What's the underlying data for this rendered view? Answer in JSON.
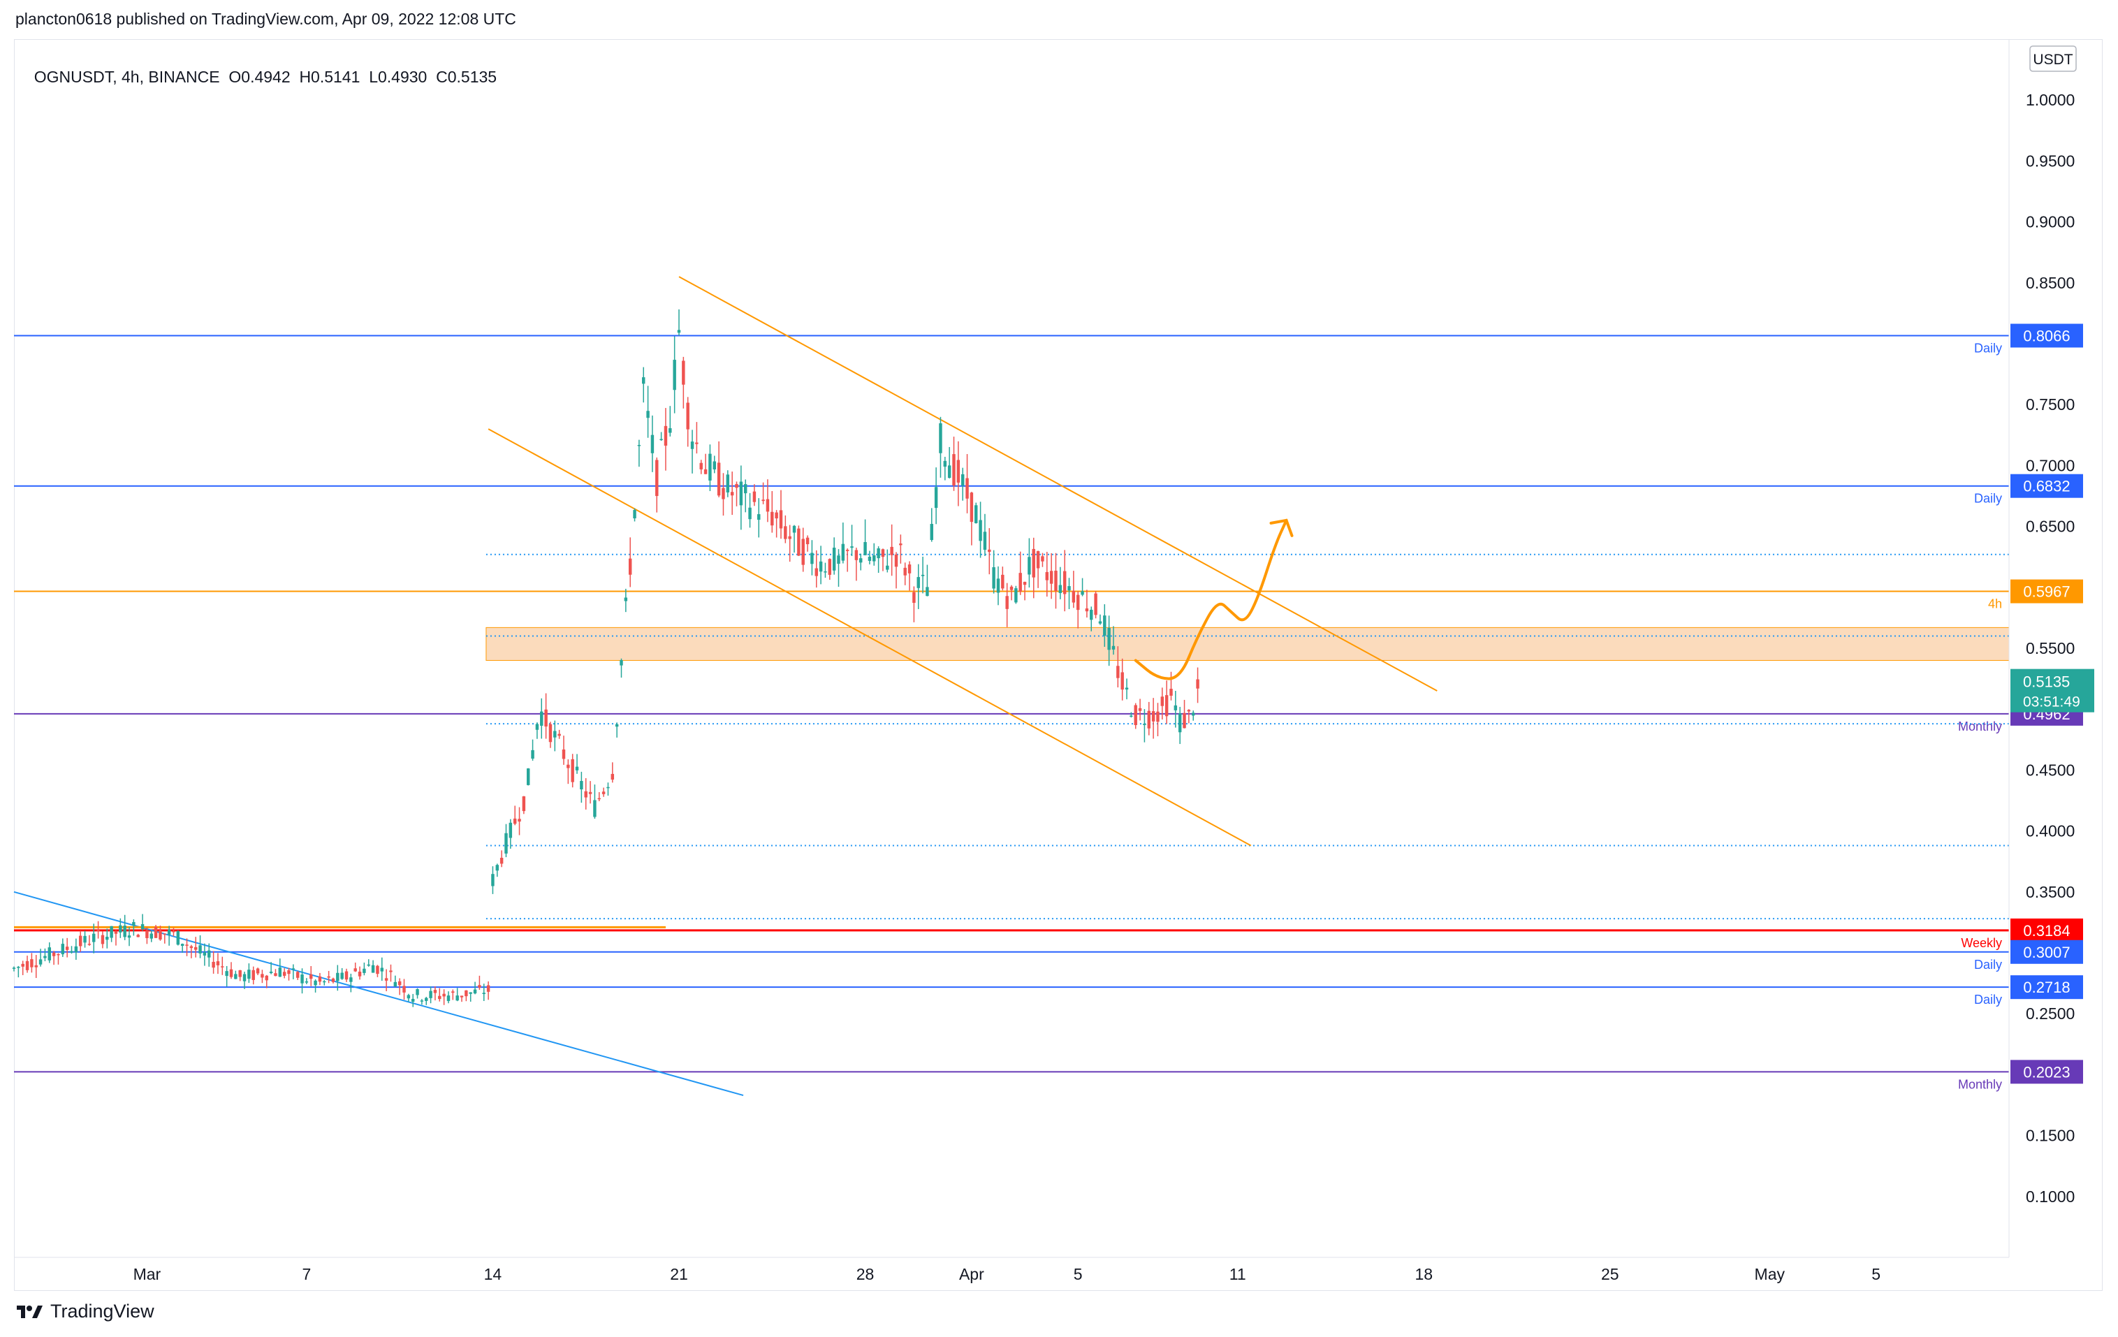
{
  "header": {
    "published": "plancton0618 published on TradingView.com, Apr 09, 2022 12:08 UTC"
  },
  "legend": {
    "symbol": "OGNUSDT, 4h, BINANCE",
    "open": "O0.4942",
    "high": "H0.5141",
    "low": "L0.4930",
    "close": "C0.5135"
  },
  "footer": {
    "brand": "TradingView",
    "icon": "tradingview-logo-icon"
  },
  "colors": {
    "up": "#26a69a",
    "down": "#ef5350",
    "orange": "#ff9800",
    "blue": "#2962ff",
    "purple": "#673ab7",
    "red": "#ff0000",
    "zone": "#f9cfa5",
    "lightblue": "#2196f3"
  },
  "chart_data": {
    "type": "candlestick",
    "title": "OGNUSDT, 4h, BINANCE",
    "currency": "USDT",
    "ylim": [
      0.05,
      1.05
    ],
    "y_ticks": [
      "1.0000",
      "0.9500",
      "0.9000",
      "0.8500",
      "0.7500",
      "0.7000",
      "0.6500",
      "0.5500",
      "0.4500",
      "0.4000",
      "0.3500",
      "0.2500",
      "0.1500",
      "0.1000"
    ],
    "x_ticks": [
      "Mar",
      "7",
      "14",
      "21",
      "28",
      "Apr",
      "5",
      "11",
      "18",
      "25",
      "May",
      "5"
    ],
    "x_range": [
      "2022-02-24",
      "2022-05-10"
    ],
    "x_tick_dates": [
      "2022-03-01",
      "2022-03-07",
      "2022-03-14",
      "2022-03-21",
      "2022-03-28",
      "2022-04-01",
      "2022-04-05",
      "2022-04-11",
      "2022-04-18",
      "2022-04-25",
      "2022-05-01",
      "2022-05-05"
    ],
    "price_path": [
      [
        "2022-02-24T00:00",
        0.287
      ],
      [
        "2022-02-27T00:00",
        0.312
      ],
      [
        "2022-02-28T12:00",
        0.32
      ],
      [
        "2022-03-02T00:00",
        0.315
      ],
      [
        "2022-03-03T00:00",
        0.3
      ],
      [
        "2022-03-04T12:00",
        0.28
      ],
      [
        "2022-03-06T00:00",
        0.285
      ],
      [
        "2022-03-07T12:00",
        0.275
      ],
      [
        "2022-03-08T12:00",
        0.28
      ],
      [
        "2022-03-09T12:00",
        0.29
      ],
      [
        "2022-03-10T06:00",
        0.28
      ],
      [
        "2022-03-11T00:00",
        0.265
      ],
      [
        "2022-03-12T12:00",
        0.265
      ],
      [
        "2022-03-13T20:00",
        0.269
      ],
      [
        "2022-03-14T00:00",
        0.36
      ],
      [
        "2022-03-14T12:00",
        0.39
      ],
      [
        "2022-03-15T06:00",
        0.43
      ],
      [
        "2022-03-15T18:00",
        0.5
      ],
      [
        "2022-03-16T12:00",
        0.47
      ],
      [
        "2022-03-17T06:00",
        0.44
      ],
      [
        "2022-03-17T20:00",
        0.42
      ],
      [
        "2022-03-18T12:00",
        0.45
      ],
      [
        "2022-03-18T20:00",
        0.54
      ],
      [
        "2022-03-19T06:00",
        0.64
      ],
      [
        "2022-03-19T16:00",
        0.76
      ],
      [
        "2022-03-20T04:00",
        0.69
      ],
      [
        "2022-03-20T16:00",
        0.74
      ],
      [
        "2022-03-21T00:00",
        0.81
      ],
      [
        "2022-03-21T10:00",
        0.73
      ],
      [
        "2022-03-22T00:00",
        0.7
      ],
      [
        "2022-03-22T20:00",
        0.68
      ],
      [
        "2022-03-23T16:00",
        0.67
      ],
      [
        "2022-03-24T12:00",
        0.66
      ],
      [
        "2022-03-25T06:00",
        0.64
      ],
      [
        "2022-03-26T06:00",
        0.62
      ],
      [
        "2022-03-27T00:00",
        0.62
      ],
      [
        "2022-03-27T16:00",
        0.63
      ],
      [
        "2022-03-28T12:00",
        0.62
      ],
      [
        "2022-03-29T06:00",
        0.63
      ],
      [
        "2022-03-29T20:00",
        0.6
      ],
      [
        "2022-03-30T08:00",
        0.6
      ],
      [
        "2022-03-30T20:00",
        0.72
      ],
      [
        "2022-03-31T12:00",
        0.69
      ],
      [
        "2022-04-01T04:00",
        0.66
      ],
      [
        "2022-04-01T20:00",
        0.61
      ],
      [
        "2022-04-02T12:00",
        0.59
      ],
      [
        "2022-04-03T06:00",
        0.62
      ],
      [
        "2022-04-04T00:00",
        0.61
      ],
      [
        "2022-04-04T16:00",
        0.6
      ],
      [
        "2022-04-05T06:00",
        0.59
      ],
      [
        "2022-04-05T20:00",
        0.58
      ],
      [
        "2022-04-06T06:00",
        0.55
      ],
      [
        "2022-04-06T16:00",
        0.52
      ],
      [
        "2022-04-07T04:00",
        0.495
      ],
      [
        "2022-04-07T16:00",
        0.495
      ],
      [
        "2022-04-08T04:00",
        0.5
      ],
      [
        "2022-04-08T12:00",
        0.51
      ],
      [
        "2022-04-08T20:00",
        0.49
      ],
      [
        "2022-04-09T04:00",
        0.493
      ],
      [
        "2022-04-09T12:00",
        0.5135
      ]
    ],
    "horizontal_levels": [
      {
        "price": 0.8066,
        "label": "0.8066",
        "timeframe": "Daily",
        "color": "#2962ff"
      },
      {
        "price": 0.6832,
        "label": "0.6832",
        "timeframe": "Daily",
        "color": "#2962ff"
      },
      {
        "price": 0.5967,
        "label": "0.5967",
        "timeframe": "4h",
        "color": "#ff9800"
      },
      {
        "price": 0.4962,
        "label": "0.4962",
        "timeframe": "Monthly",
        "color": "#673ab7"
      },
      {
        "price": 0.3184,
        "label": "0.3184",
        "timeframe": "Weekly",
        "color": "#ff0000"
      },
      {
        "price": 0.3007,
        "label": "0.3007",
        "timeframe": "Daily",
        "color": "#2962ff"
      },
      {
        "price": 0.2718,
        "label": "0.2718",
        "timeframe": "Daily",
        "color": "#2962ff"
      },
      {
        "price": 0.2023,
        "label": "0.2023",
        "timeframe": "Monthly",
        "color": "#673ab7"
      }
    ],
    "current_price": {
      "label": "0.5135",
      "countdown": "03:51:49",
      "price": 0.5135,
      "color": "#26a69a"
    },
    "zone": {
      "from": 0.54,
      "to": 0.567,
      "start": "2022-03-13T18:00"
    },
    "dotted_levels": [
      0.627,
      0.56,
      0.488,
      0.388,
      0.328
    ],
    "channel": {
      "upper": [
        [
          "2022-03-21T00:00",
          0.855
        ],
        [
          "2022-04-18T12:00",
          0.515
        ]
      ],
      "lower": [
        [
          "2022-03-13T20:00",
          0.73
        ],
        [
          "2022-04-11T12:00",
          0.388
        ]
      ]
    },
    "downtrend": [
      [
        "2022-02-24T00:00",
        0.35
      ],
      [
        "2022-03-23T10:00",
        0.183
      ]
    ],
    "projection": [
      [
        "2022-04-07T04:00",
        0.54
      ],
      [
        "2022-04-08T00:00",
        0.525
      ],
      [
        "2022-04-08T20:00",
        0.525
      ],
      [
        "2022-04-09T12:00",
        0.56
      ],
      [
        "2022-04-10T06:00",
        0.59
      ],
      [
        "2022-04-10T18:00",
        0.58
      ],
      [
        "2022-04-11T06:00",
        0.57
      ],
      [
        "2022-04-11T18:00",
        0.59
      ],
      [
        "2022-04-12T10:00",
        0.635
      ],
      [
        "2022-04-12T20:00",
        0.655
      ]
    ]
  }
}
